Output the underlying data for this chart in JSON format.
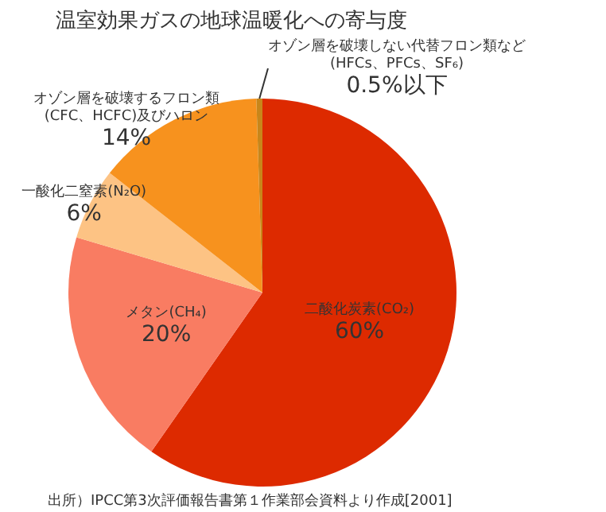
{
  "chart_data": {
    "type": "pie",
    "title": "温室効果ガスの地球温暖化への寄与度",
    "categories": [
      "二酸化炭素(CO₂)",
      "メタン(CH₄)",
      "一酸化二窒素(N₂O)",
      "オゾン層を破壊するフロン類\n(CFC、HCFC)及びハロン",
      "オゾン層を破壊しない代替フロン類など\n(HFCs、PFCs、SF₆)"
    ],
    "values": [
      60,
      20,
      6,
      14,
      0.5
    ],
    "value_labels": [
      "60%",
      "20%",
      "6%",
      "14%",
      "0.5%以下"
    ],
    "colors": [
      "#dd2a00",
      "#f97c62",
      "#fdc384",
      "#f7921e",
      "#c8861a"
    ],
    "annotations": [
      "出所）IPCC第3次評価報告書第１作業部会資料より作成[2001]"
    ],
    "legend": false
  }
}
